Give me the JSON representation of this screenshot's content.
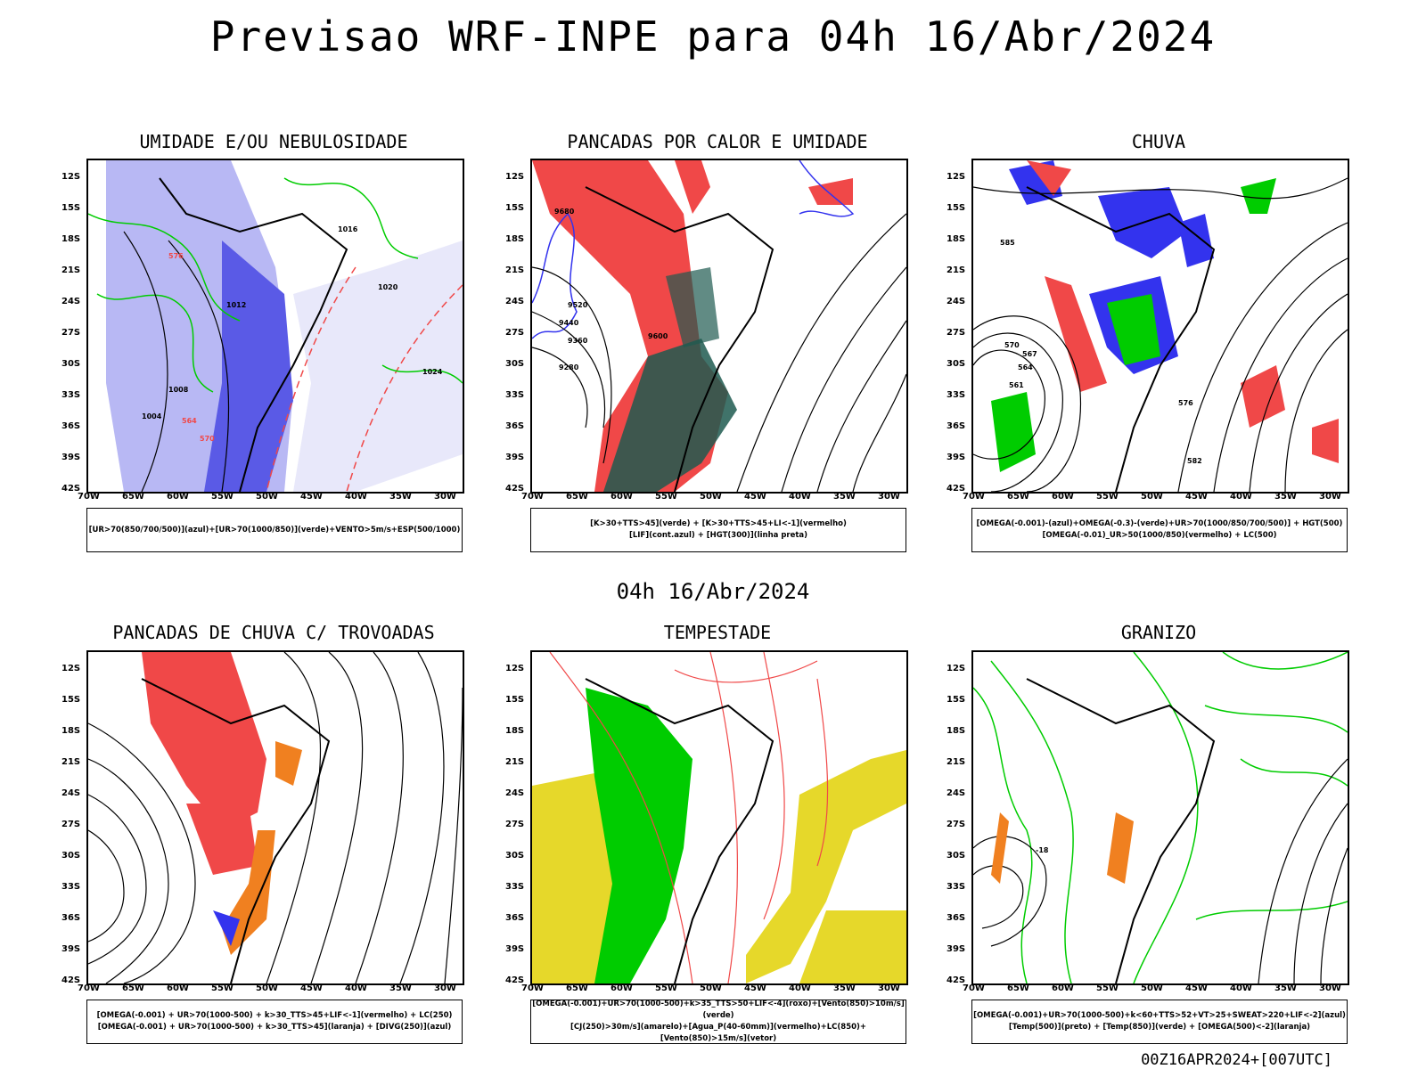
{
  "header": {
    "title": "Previsao WRF-INPE  para 04h 16/Abr/2024"
  },
  "middle": {
    "title": "04h 16/Abr/2024"
  },
  "footer": {
    "stamp": "00Z16APR2024+[007UTC]"
  },
  "axes": {
    "lat_ticks": [
      "12S",
      "15S",
      "18S",
      "21S",
      "24S",
      "27S",
      "30S",
      "33S",
      "36S",
      "39S",
      "42S"
    ],
    "lon_ticks": [
      "70W",
      "65W",
      "60W",
      "55W",
      "50W",
      "45W",
      "40W",
      "35W",
      "30W"
    ]
  },
  "colors": {
    "blue": "#6b6bf0",
    "green": "#00cc00",
    "red": "#f04848",
    "orange": "#f08020",
    "yellow": "#e6d82a",
    "darkgreen": "#1e5a50"
  },
  "panels": [
    {
      "title": "UMIDADE E/OU NEBULOSIDADE",
      "legend": [
        "[UR>70(850/700/500)](azul)+[UR>70(1000/850)](verde)+VENTO>5m/s+ESP(500/1000)"
      ]
    },
    {
      "title": "PANCADAS POR CALOR E UMIDADE",
      "legend": [
        "[K>30+TTS>45](verde) + [K>30+TTS>45+LI<-1](vermelho)",
        "[LIF](cont.azul) + [HGT(300)](linha preta)"
      ]
    },
    {
      "title": "CHUVA",
      "legend": [
        "[OMEGA(-0.001)-(azul)+OMEGA(-0.3)-(verde)+UR>70(1000/850/700/500)] + HGT(500)",
        "[OMEGA(-0.01)_UR>50(1000/850)(vermelho) + LC(500)"
      ]
    },
    {
      "title": "PANCADAS DE CHUVA C/ TROVOADAS",
      "legend": [
        "[OMEGA(-0.001) + UR>70(1000-500) + k>30_TTS>45+LIF<-1](vermelho) + LC(250)",
        "[OMEGA(-0.001) + UR>70(1000-500) + k>30_TTS>45](laranja) + [DIVG(250)](azul)"
      ]
    },
    {
      "title": "TEMPESTADE",
      "legend": [
        "[OMEGA(-0.001)+UR>70(1000-500)+k>35_TTS>50+LIF<-4](roxo)+[Vento(850)>10m/s](verde)",
        "[CJ(250)>30m/s](amarelo)+[Agua_P(40-60mm)](vermelho)+LC(850)+[Vento(850)>15m/s](vetor)"
      ]
    },
    {
      "title": "GRANIZO",
      "legend": [
        "[OMEGA(-0.001)+UR>70(1000-500)+k<60+TTS>52+VT>25+SWEAT>220+LIF<-2](azul)",
        "[Temp(500)](preto) + [Temp(850)](verde) + [OMEGA(500)<-2](laranja)"
      ]
    }
  ],
  "contour_labels": {
    "p1": [
      "1012",
      "1016",
      "1020",
      "1024",
      "1008",
      "1004",
      "570",
      "576",
      "564"
    ],
    "p2": [
      "9680",
      "9600",
      "9520",
      "9440",
      "9360",
      "9280"
    ],
    "p3": [
      "582",
      "576",
      "570",
      "567",
      "564",
      "561",
      "585"
    ],
    "p6": [
      "-18"
    ]
  }
}
